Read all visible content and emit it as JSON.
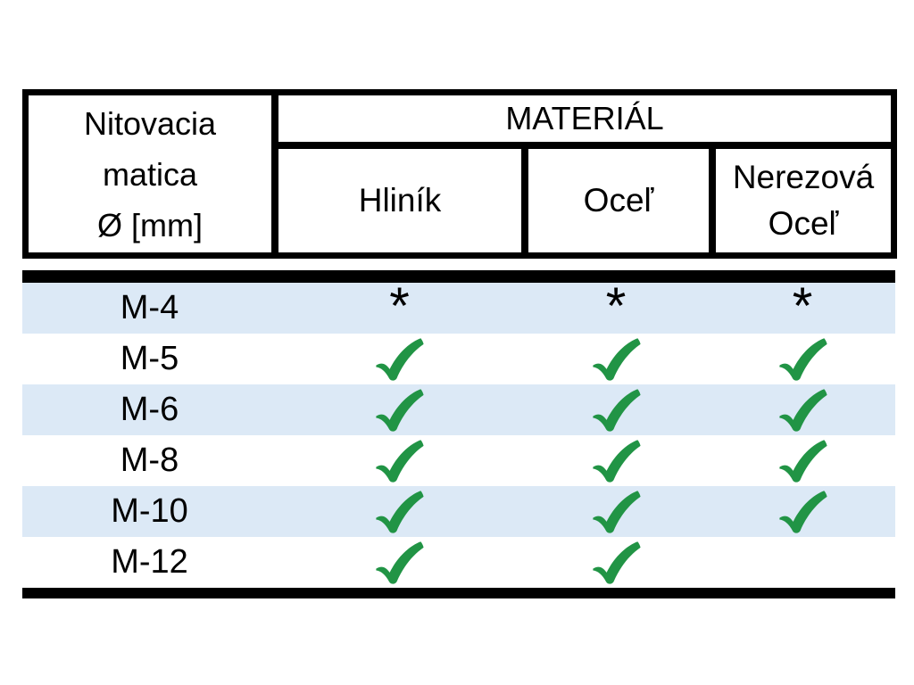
{
  "table": {
    "row_header": {
      "line1": "Nitovacia",
      "line2": "matica",
      "line3": "Ø [mm]"
    },
    "group_header": "MATERIÁL",
    "columns": [
      "Hliník",
      "Oceľ",
      "Nerezová Oceľ"
    ],
    "rows": [
      {
        "label": "M-4",
        "cells": [
          "asterisk",
          "asterisk",
          "asterisk"
        ]
      },
      {
        "label": "M-5",
        "cells": [
          "check",
          "check",
          "check"
        ]
      },
      {
        "label": "M-6",
        "cells": [
          "check",
          "check",
          "check"
        ]
      },
      {
        "label": "M-8",
        "cells": [
          "check",
          "check",
          "check"
        ]
      },
      {
        "label": "M-10",
        "cells": [
          "check",
          "check",
          "check"
        ]
      },
      {
        "label": "M-12",
        "cells": [
          "check",
          "check",
          "none"
        ]
      }
    ]
  },
  "symbols": {
    "asterisk_char": "*",
    "check_icon": "green-checkmark-icon"
  },
  "colors": {
    "row_stripe": "#dce9f6",
    "check_green": "#219445",
    "border_black": "#000000",
    "background": "#ffffff"
  }
}
